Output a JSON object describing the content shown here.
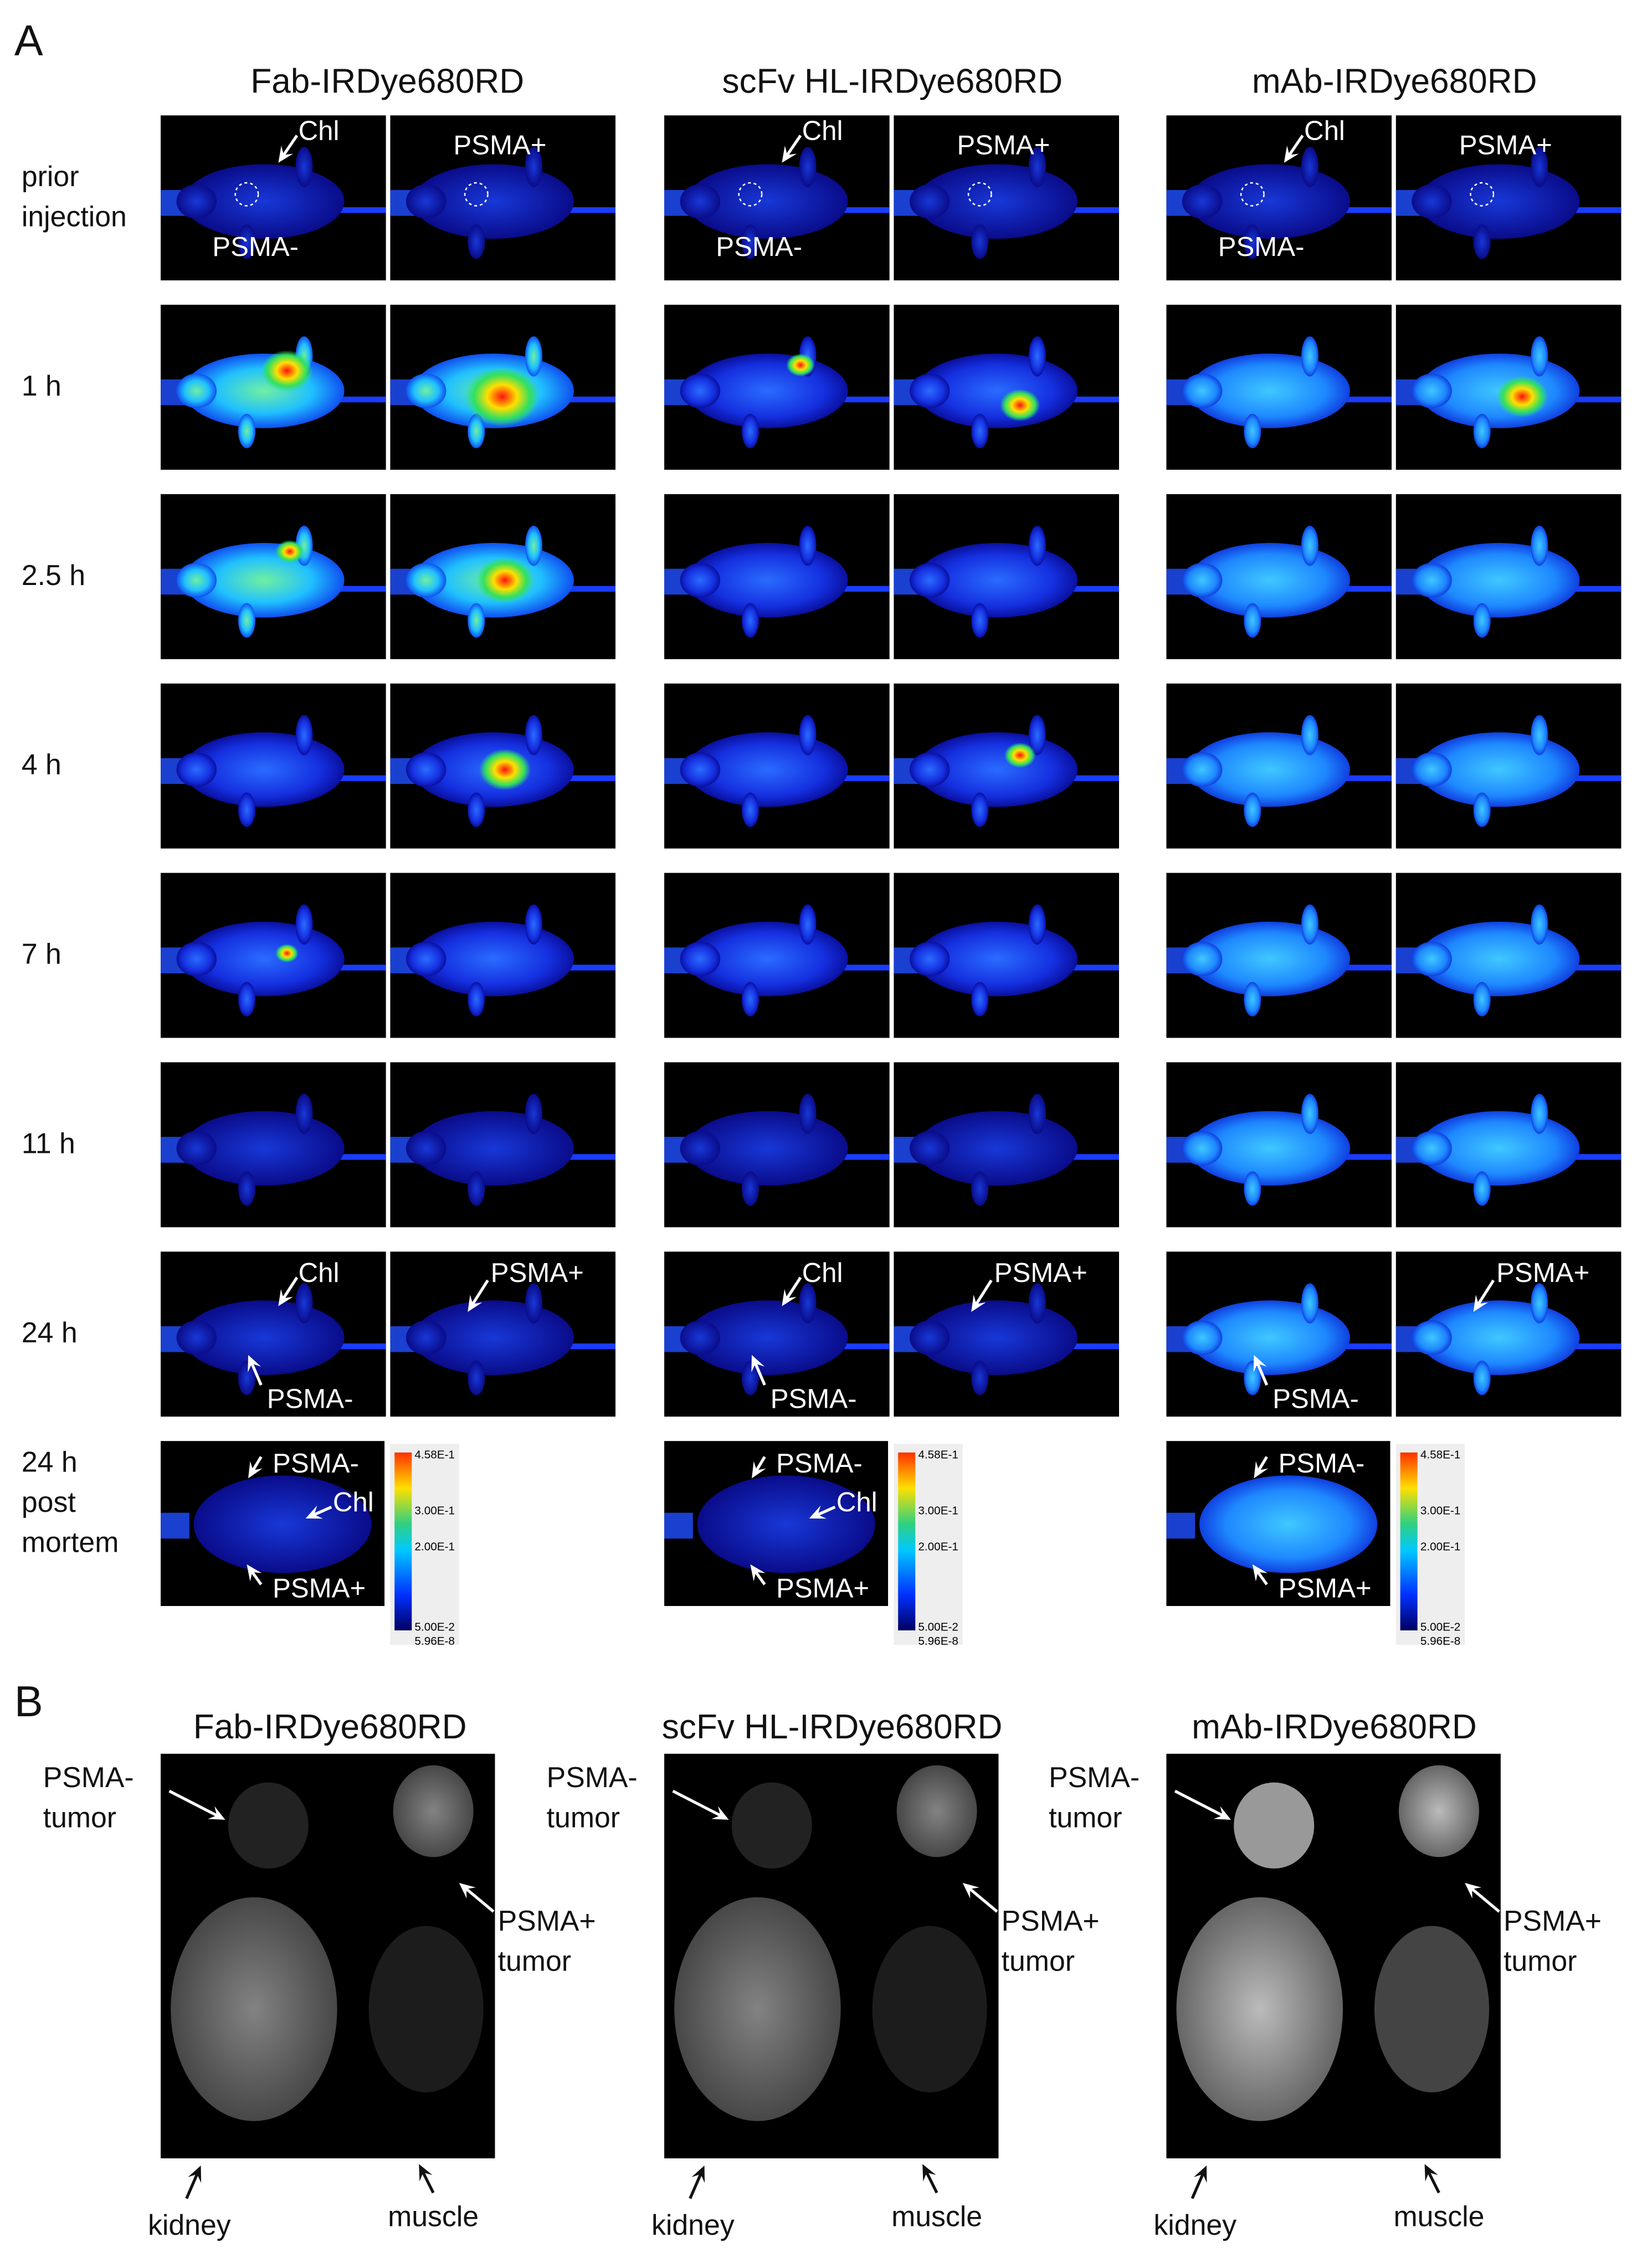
{
  "panel_a": {
    "label": "A",
    "columns": [
      "Fab-IRDye680RD",
      "scFv HL-IRDye680RD",
      "mAb-IRDye680RD"
    ],
    "rows": [
      [
        "prior",
        "injection"
      ],
      [
        "1 h"
      ],
      [
        "2.5 h"
      ],
      [
        "4 h"
      ],
      [
        "7 h"
      ],
      [
        "11 h"
      ],
      [
        "24 h"
      ],
      [
        "24 h",
        "post",
        "mortem"
      ]
    ],
    "prior_injection_labels": [
      {
        "chl": "Chl",
        "psma_neg": "PSMA-",
        "psma_pos": "PSMA+"
      },
      {
        "chl": "Chl",
        "psma_neg": "PSMA-",
        "psma_pos": "PSMA+"
      },
      {
        "chl": "Chl",
        "psma_neg": "PSMA-",
        "psma_pos": "PSMA+"
      }
    ],
    "h24_labels": [
      {
        "chl": "Chl",
        "psma_neg": "PSMA-",
        "psma_pos": "PSMA+"
      },
      {
        "chl": "Chl",
        "psma_neg": "PSMA-",
        "psma_pos": "PSMA+"
      },
      {
        "psma_neg": "PSMA-",
        "psma_pos": "PSMA+"
      }
    ],
    "post_mortem_labels": [
      {
        "psma_neg": "PSMA-",
        "chl": "Chl",
        "psma_pos": "PSMA+"
      },
      {
        "psma_neg": "PSMA-",
        "chl": "Chl",
        "psma_pos": "PSMA+"
      },
      {
        "psma_neg": "PSMA-",
        "psma_pos": "PSMA+"
      }
    ],
    "colorbar_ticks": [
      "4.58E-1",
      "3.00E-1",
      "2.00E-1",
      "5.00E-2",
      "5.96E-8"
    ]
  },
  "panel_b": {
    "label": "B",
    "columns": [
      "Fab-IRDye680RD",
      "scFv HL-IRDye680RD",
      "mAb-IRDye680RD"
    ],
    "psma_neg_tumor": [
      "PSMA-",
      "tumor"
    ],
    "psma_pos_tumor": [
      "PSMA+",
      "tumor"
    ],
    "kidney": "kidney",
    "muscle": "muscle"
  }
}
